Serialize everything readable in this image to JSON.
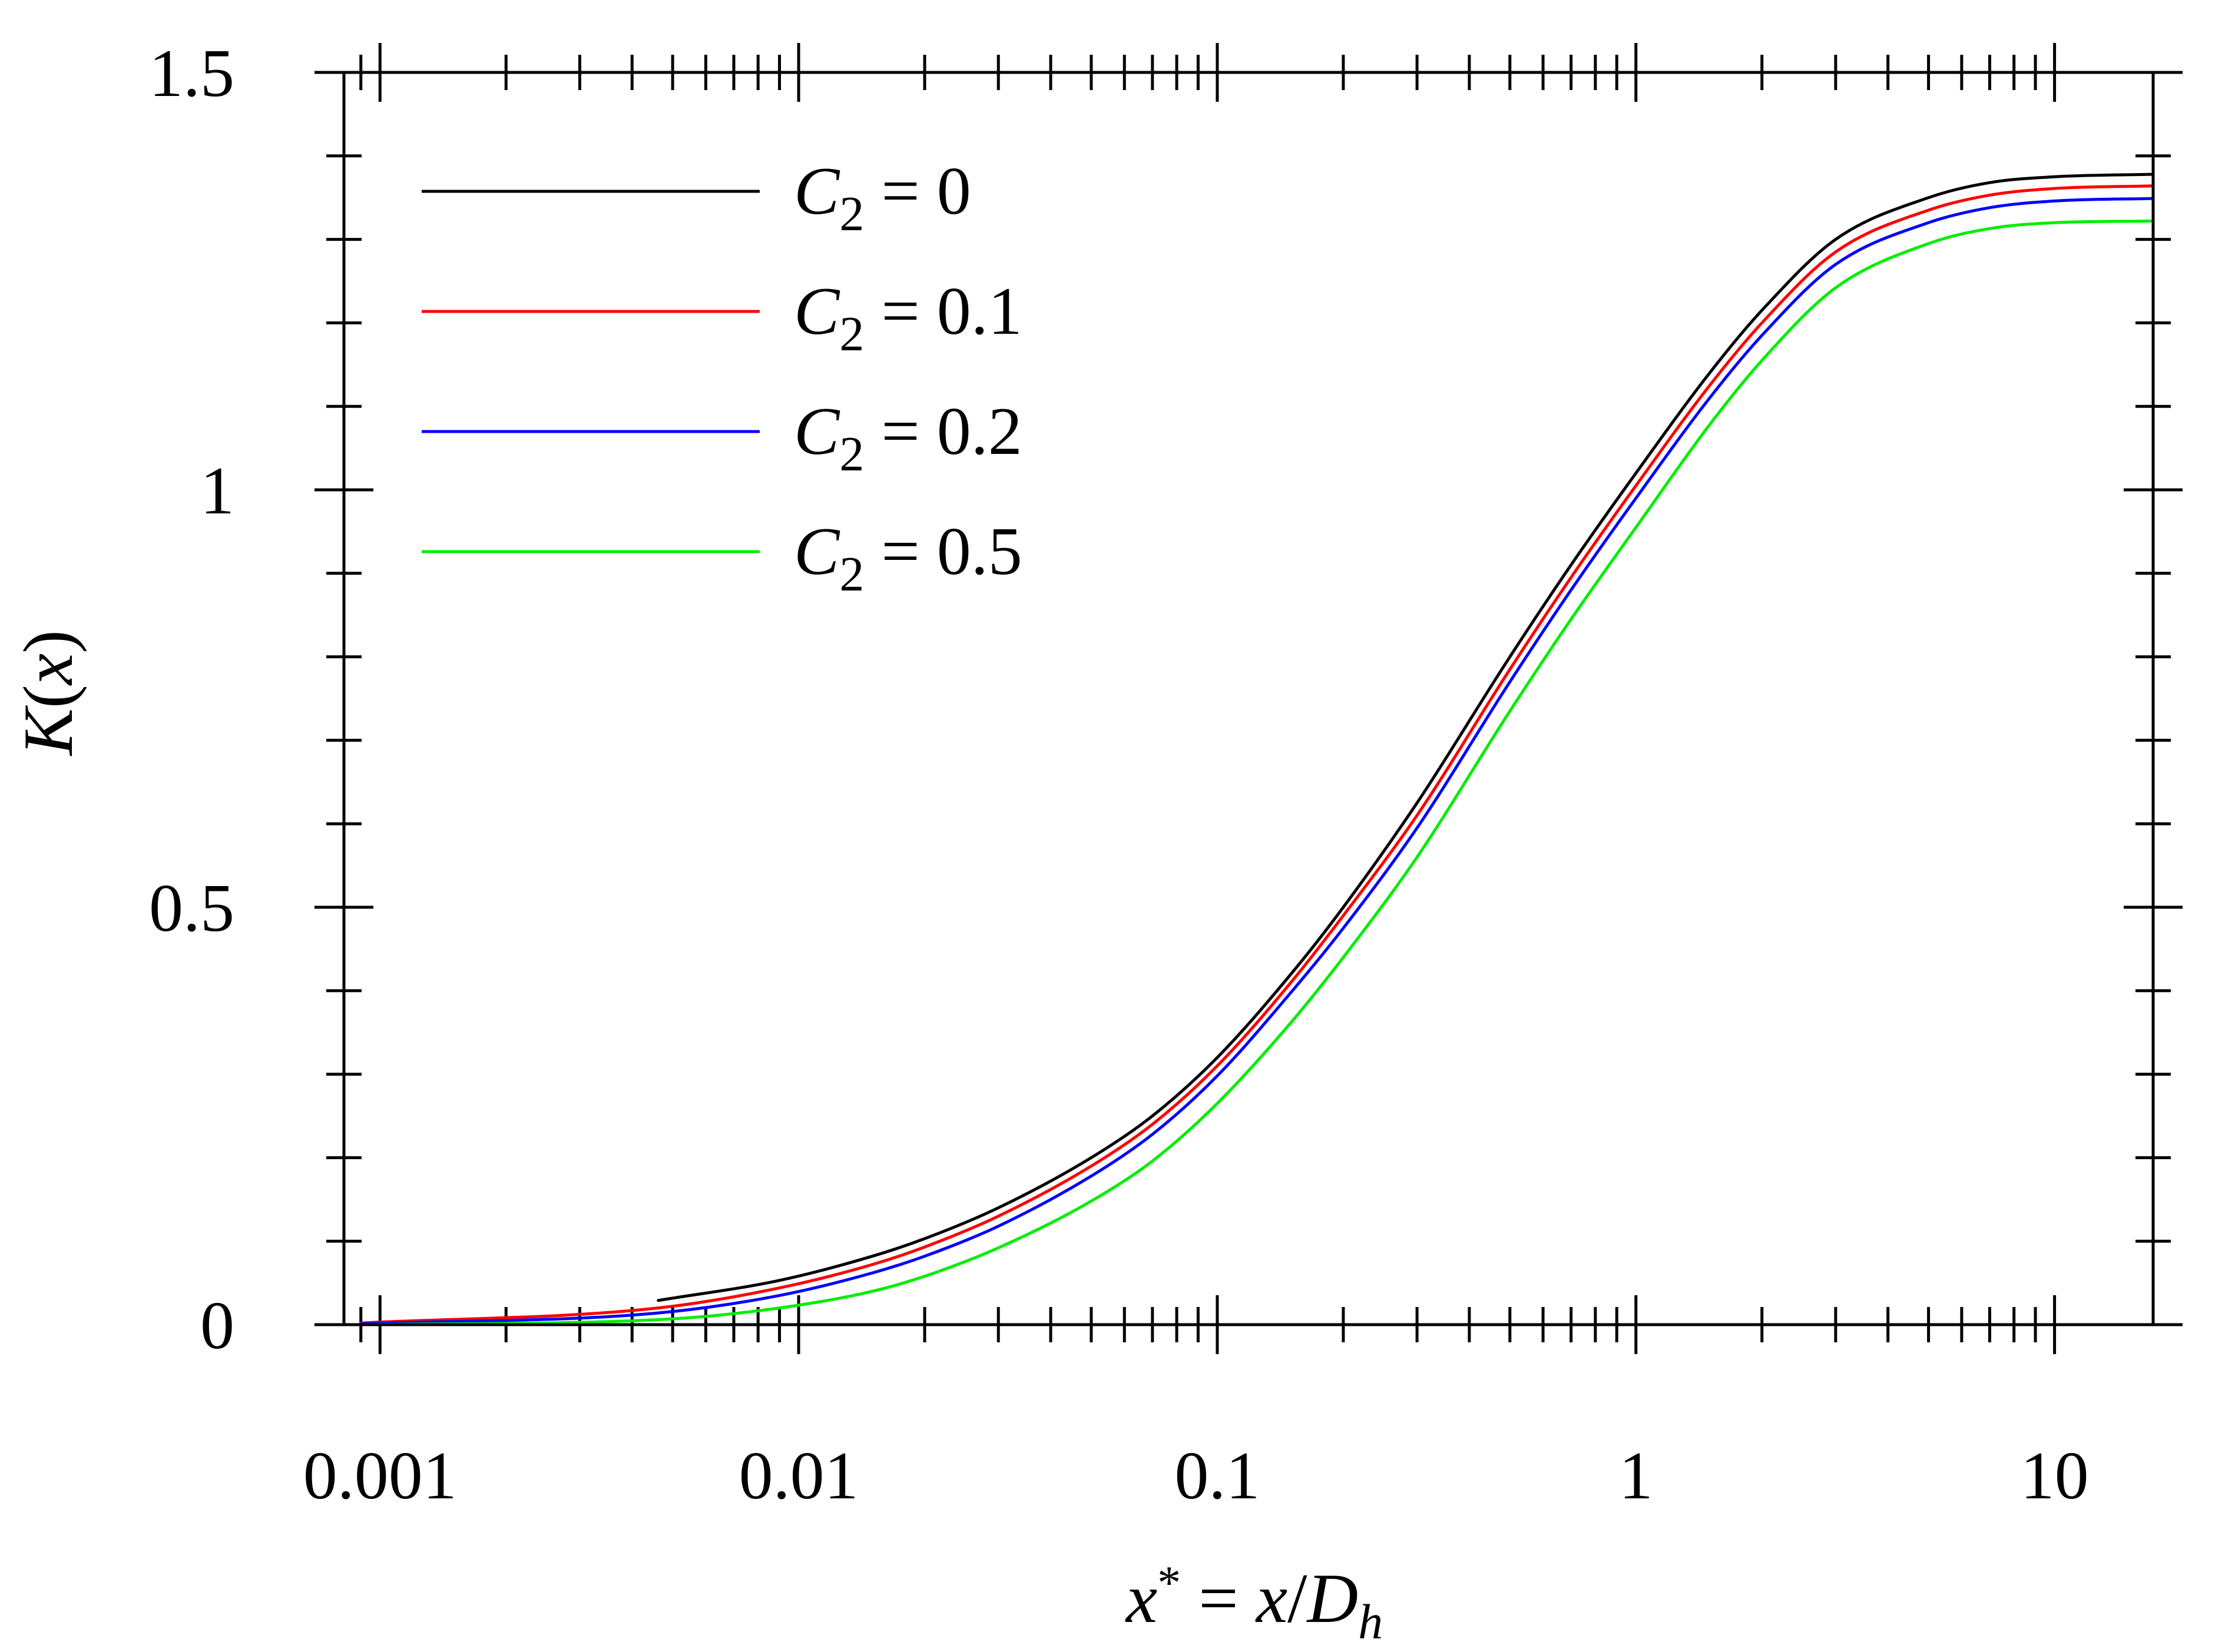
{
  "chart_data": {
    "type": "line",
    "title": "",
    "xlabel": "x* = x/D_h",
    "xlabel_parts": {
      "a": "x",
      "b": "*",
      "c": " = ",
      "d": "x",
      "e": "/",
      "f": "D",
      "g": "h"
    },
    "ylabel": "K(x)",
    "ylabel_parts": {
      "a": "K",
      "b": "(",
      "c": "x",
      "d": ")"
    },
    "x_scale": "log",
    "xlim": [
      0.00082,
      17.2
    ],
    "ylim": [
      0,
      1.5
    ],
    "x_ticks": [
      0.001,
      0.01,
      0.1,
      1,
      10
    ],
    "x_tick_labels": [
      "0.001",
      "0.01",
      "0.1",
      "1",
      "10"
    ],
    "y_ticks": [
      0,
      0.5,
      1,
      1.5
    ],
    "y_tick_labels": [
      "0",
      "0.5",
      "1",
      "1.5"
    ],
    "grid": false,
    "legend_position": "top-left",
    "x": [
      0.0009,
      0.00462,
      0.009,
      0.015,
      0.02,
      0.03,
      0.05,
      0.07,
      0.1,
      0.15,
      0.2,
      0.3,
      0.5,
      0.7,
      1,
      1.5,
      2,
      3,
      5,
      7,
      10,
      17.2
    ],
    "series": [
      {
        "legend": "C",
        "sub": "2",
        "eq": " = 0",
        "color": "#000000",
        "x_start": 0.00462,
        "values": [
          null,
          0.029,
          0.053,
          0.082,
          0.103,
          0.14,
          0.2,
          0.25,
          0.32,
          0.42,
          0.5,
          0.625,
          0.8,
          0.91,
          1.02,
          1.14,
          1.215,
          1.3,
          1.35,
          1.368,
          1.375,
          1.378
        ]
      },
      {
        "legend": "C",
        "sub": "2",
        "eq": " = 0.1",
        "color": "#ff0000",
        "x_start": 0.0009,
        "values": [
          0.002,
          0.02,
          0.044,
          0.072,
          0.093,
          0.13,
          0.19,
          0.24,
          0.31,
          0.41,
          0.49,
          0.61,
          0.785,
          0.895,
          1.005,
          1.125,
          1.2,
          1.285,
          1.335,
          1.353,
          1.361,
          1.364
        ]
      },
      {
        "legend": "C",
        "sub": "2",
        "eq": " = 0.2",
        "color": "#0000ff",
        "x_start": 0.0009,
        "values": [
          0.001,
          0.014,
          0.035,
          0.062,
          0.082,
          0.118,
          0.178,
          0.228,
          0.298,
          0.398,
          0.475,
          0.595,
          0.77,
          0.88,
          0.99,
          1.11,
          1.185,
          1.27,
          1.32,
          1.338,
          1.346,
          1.349
        ]
      },
      {
        "legend": "C",
        "sub": "2",
        "eq": " = 0.5",
        "color": "#00ee00",
        "x_start": 0.0009,
        "values": [
          0.0,
          0.006,
          0.02,
          0.04,
          0.058,
          0.092,
          0.148,
          0.196,
          0.265,
          0.362,
          0.44,
          0.56,
          0.735,
          0.845,
          0.955,
          1.078,
          1.155,
          1.242,
          1.295,
          1.313,
          1.32,
          1.322
        ]
      }
    ]
  }
}
